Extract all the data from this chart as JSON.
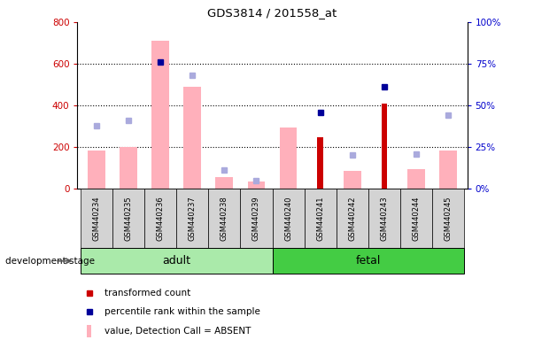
{
  "title": "GDS3814 / 201558_at",
  "samples": [
    "GSM440234",
    "GSM440235",
    "GSM440236",
    "GSM440237",
    "GSM440238",
    "GSM440239",
    "GSM440240",
    "GSM440241",
    "GSM440242",
    "GSM440243",
    "GSM440244",
    "GSM440245"
  ],
  "pink_bars": [
    185,
    200,
    710,
    490,
    55,
    35,
    295,
    null,
    85,
    null,
    95,
    185
  ],
  "red_bars": [
    null,
    null,
    null,
    null,
    null,
    null,
    null,
    245,
    null,
    410,
    null,
    null
  ],
  "blue_squares": [
    null,
    null,
    76,
    null,
    null,
    null,
    null,
    46,
    null,
    61,
    null,
    null
  ],
  "lavender_squares": [
    38,
    41,
    null,
    68,
    11,
    5,
    null,
    null,
    20,
    null,
    21,
    44
  ],
  "ylim_left": [
    0,
    800
  ],
  "ylim_right": [
    0,
    100
  ],
  "yticks_left": [
    0,
    200,
    400,
    600,
    800
  ],
  "yticks_right": [
    0,
    25,
    50,
    75,
    100
  ],
  "color_pink_bar": "#ffb0bb",
  "color_red_bar": "#cc0000",
  "color_blue_sq": "#000099",
  "color_lavender_sq": "#aaaadd",
  "color_adult_bg": "#aaeaaa",
  "color_fetal_bg": "#44cc44",
  "color_sample_bg": "#d3d3d3",
  "left_tick_color": "#cc0000",
  "right_tick_color": "#0000cc",
  "group_label": "development stage"
}
